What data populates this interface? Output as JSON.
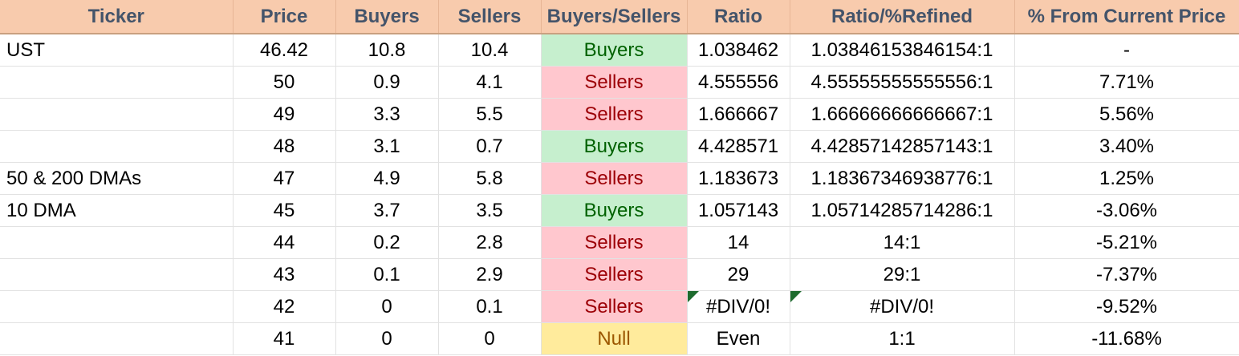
{
  "headers": [
    "Ticker",
    "Price",
    "Buyers",
    "Sellers",
    "Buyers/Sellers",
    "Ratio",
    "Ratio/%Refined",
    "% From Current Price"
  ],
  "rows": [
    {
      "ticker": "UST",
      "price": "46.42",
      "buyers": "10.8",
      "sellers": "10.4",
      "bs": "Buyers",
      "ratio": "1.038462",
      "refined": "1.03846153846154:1",
      "pct": "-",
      "flag": false
    },
    {
      "ticker": "",
      "price": "50",
      "buyers": "0.9",
      "sellers": "4.1",
      "bs": "Sellers",
      "ratio": "4.555556",
      "refined": "4.55555555555556:1",
      "pct": "7.71%",
      "flag": false
    },
    {
      "ticker": "",
      "price": "49",
      "buyers": "3.3",
      "sellers": "5.5",
      "bs": "Sellers",
      "ratio": "1.666667",
      "refined": "1.66666666666667:1",
      "pct": "5.56%",
      "flag": false
    },
    {
      "ticker": "",
      "price": "48",
      "buyers": "3.1",
      "sellers": "0.7",
      "bs": "Buyers",
      "ratio": "4.428571",
      "refined": "4.42857142857143:1",
      "pct": "3.40%",
      "flag": false
    },
    {
      "ticker": "50 & 200 DMAs",
      "price": "47",
      "buyers": "4.9",
      "sellers": "5.8",
      "bs": "Sellers",
      "ratio": "1.183673",
      "refined": "1.18367346938776:1",
      "pct": "1.25%",
      "flag": false
    },
    {
      "ticker": "10 DMA",
      "price": "45",
      "buyers": "3.7",
      "sellers": "3.5",
      "bs": "Buyers",
      "ratio": "1.057143",
      "refined": "1.05714285714286:1",
      "pct": "-3.06%",
      "flag": false
    },
    {
      "ticker": "",
      "price": "44",
      "buyers": "0.2",
      "sellers": "2.8",
      "bs": "Sellers",
      "ratio": "14",
      "refined": "14:1",
      "pct": "-5.21%",
      "flag": false
    },
    {
      "ticker": "",
      "price": "43",
      "buyers": "0.1",
      "sellers": "2.9",
      "bs": "Sellers",
      "ratio": "29",
      "refined": "29:1",
      "pct": "-7.37%",
      "flag": false
    },
    {
      "ticker": "",
      "price": "42",
      "buyers": "0",
      "sellers": "0.1",
      "bs": "Sellers",
      "ratio": "#DIV/0!",
      "refined": "#DIV/0!",
      "pct": "-9.52%",
      "flag": true
    },
    {
      "ticker": "",
      "price": "41",
      "buyers": "0",
      "sellers": "0",
      "bs": "Null",
      "ratio": "Even",
      "refined": "1:1",
      "pct": "-11.68%",
      "flag": false
    }
  ],
  "colors": {
    "header_bg": "#f8cbad",
    "header_text": "#44546a",
    "buyers_bg": "#c6efce",
    "buyers_text": "#006100",
    "sellers_bg": "#ffc7ce",
    "sellers_text": "#9c0006",
    "null_bg": "#ffeb9c",
    "null_text": "#9c5700",
    "error_flag": "#1e6b2e"
  }
}
